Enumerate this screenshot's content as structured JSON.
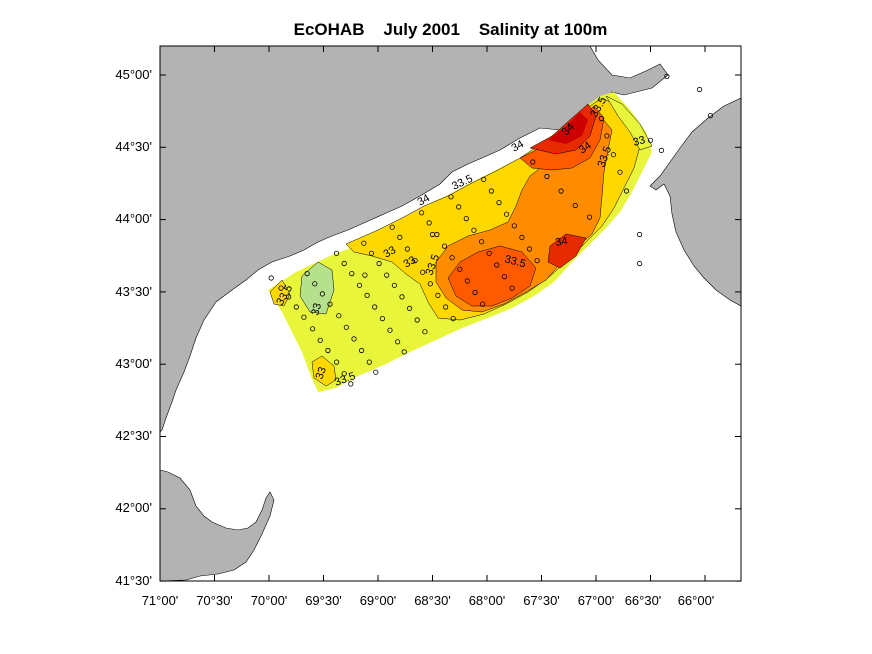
{
  "title": "EcOHAB    July 2001    Salinity at 100m",
  "colors": {
    "land": "#b3b3b3",
    "water": "#ffffff",
    "frame": "#000000",
    "level_32_5": "#b5e18c",
    "level_33": "#e8f53a",
    "level_33_5": "#ffd800",
    "level_34": "#ff8c00",
    "level_34_5": "#ff5a00",
    "level_35": "#e82a00",
    "level_35_5": "#cc0000"
  },
  "axes": {
    "x_ticks": [
      "71°00'",
      "70°30'",
      "70°00'",
      "69°30'",
      "69°00'",
      "68°30'",
      "68°00'",
      "67°30'",
      "67°00'",
      "66°30'",
      "66°00'"
    ],
    "y_ticks": [
      "45°00'",
      "44°30'",
      "44°00'",
      "43°30'",
      "43°00'",
      "42°30'",
      "42°00'",
      "41°30'"
    ]
  },
  "contour_labels": [
    "33.5",
    "33",
    "33.5",
    "33",
    "33",
    "33.5",
    "34",
    "33.5",
    "33.5",
    "34",
    "34",
    "33.5",
    "33",
    "33.5",
    "33",
    "34",
    "34"
  ],
  "stations": [
    [
      -69.89,
      43.53
    ],
    [
      -69.82,
      43.47
    ],
    [
      -69.75,
      43.4
    ],
    [
      -69.68,
      43.33
    ],
    [
      -69.6,
      43.25
    ],
    [
      -69.53,
      43.17
    ],
    [
      -69.46,
      43.1
    ],
    [
      -69.38,
      43.02
    ],
    [
      -69.31,
      42.94
    ],
    [
      -69.25,
      42.87
    ],
    [
      -69.65,
      43.63
    ],
    [
      -69.58,
      43.56
    ],
    [
      -69.51,
      43.49
    ],
    [
      -69.44,
      43.42
    ],
    [
      -69.36,
      43.34
    ],
    [
      -69.29,
      43.26
    ],
    [
      -69.22,
      43.18
    ],
    [
      -69.15,
      43.1
    ],
    [
      -69.08,
      43.02
    ],
    [
      -69.02,
      42.95
    ],
    [
      -69.38,
      43.77
    ],
    [
      -69.31,
      43.7
    ],
    [
      -69.24,
      43.63
    ],
    [
      -69.17,
      43.55
    ],
    [
      -69.1,
      43.48
    ],
    [
      -69.03,
      43.4
    ],
    [
      -68.96,
      43.32
    ],
    [
      -68.89,
      43.24
    ],
    [
      -68.82,
      43.16
    ],
    [
      -68.76,
      43.09
    ],
    [
      -69.13,
      43.84
    ],
    [
      -69.06,
      43.77
    ],
    [
      -68.99,
      43.7
    ],
    [
      -68.92,
      43.62
    ],
    [
      -68.85,
      43.55
    ],
    [
      -68.78,
      43.47
    ],
    [
      -68.71,
      43.39
    ],
    [
      -68.64,
      43.31
    ],
    [
      -68.57,
      43.23
    ],
    [
      -68.87,
      43.95
    ],
    [
      -68.8,
      43.88
    ],
    [
      -68.73,
      43.8
    ],
    [
      -68.66,
      43.72
    ],
    [
      -68.59,
      43.64
    ],
    [
      -68.52,
      43.56
    ],
    [
      -68.45,
      43.48
    ],
    [
      -68.38,
      43.4
    ],
    [
      -68.31,
      43.32
    ],
    [
      -68.6,
      44.05
    ],
    [
      -68.53,
      43.98
    ],
    [
      -68.46,
      43.9
    ],
    [
      -68.39,
      43.82
    ],
    [
      -68.32,
      43.74
    ],
    [
      -68.25,
      43.66
    ],
    [
      -68.18,
      43.58
    ],
    [
      -68.11,
      43.5
    ],
    [
      -68.04,
      43.42
    ],
    [
      -68.33,
      44.16
    ],
    [
      -68.26,
      44.09
    ],
    [
      -68.19,
      44.01
    ],
    [
      -68.12,
      43.93
    ],
    [
      -68.05,
      43.85
    ],
    [
      -67.98,
      43.77
    ],
    [
      -67.91,
      43.69
    ],
    [
      -67.84,
      43.61
    ],
    [
      -67.77,
      43.53
    ],
    [
      -68.03,
      44.28
    ],
    [
      -67.96,
      44.2
    ],
    [
      -67.89,
      44.12
    ],
    [
      -67.82,
      44.04
    ],
    [
      -67.75,
      43.96
    ],
    [
      -67.68,
      43.88
    ],
    [
      -67.61,
      43.8
    ],
    [
      -67.54,
      43.72
    ],
    [
      -67.58,
      44.4
    ],
    [
      -67.45,
      44.3
    ],
    [
      -67.32,
      44.2
    ],
    [
      -67.19,
      44.1
    ],
    [
      -67.06,
      44.02
    ],
    [
      -66.95,
      44.7
    ],
    [
      -66.9,
      44.58
    ],
    [
      -66.84,
      44.45
    ],
    [
      -66.78,
      44.33
    ],
    [
      -66.72,
      44.2
    ],
    [
      -66.5,
      44.55
    ],
    [
      -66.4,
      44.48
    ],
    [
      -66.6,
      43.9
    ],
    [
      -66.6,
      43.7
    ],
    [
      -66.35,
      44.99
    ],
    [
      -66.05,
      44.9
    ],
    [
      -65.95,
      44.72
    ],
    [
      -69.98,
      43.6
    ],
    [
      -69.12,
      43.62
    ],
    [
      -68.5,
      43.9
    ]
  ]
}
